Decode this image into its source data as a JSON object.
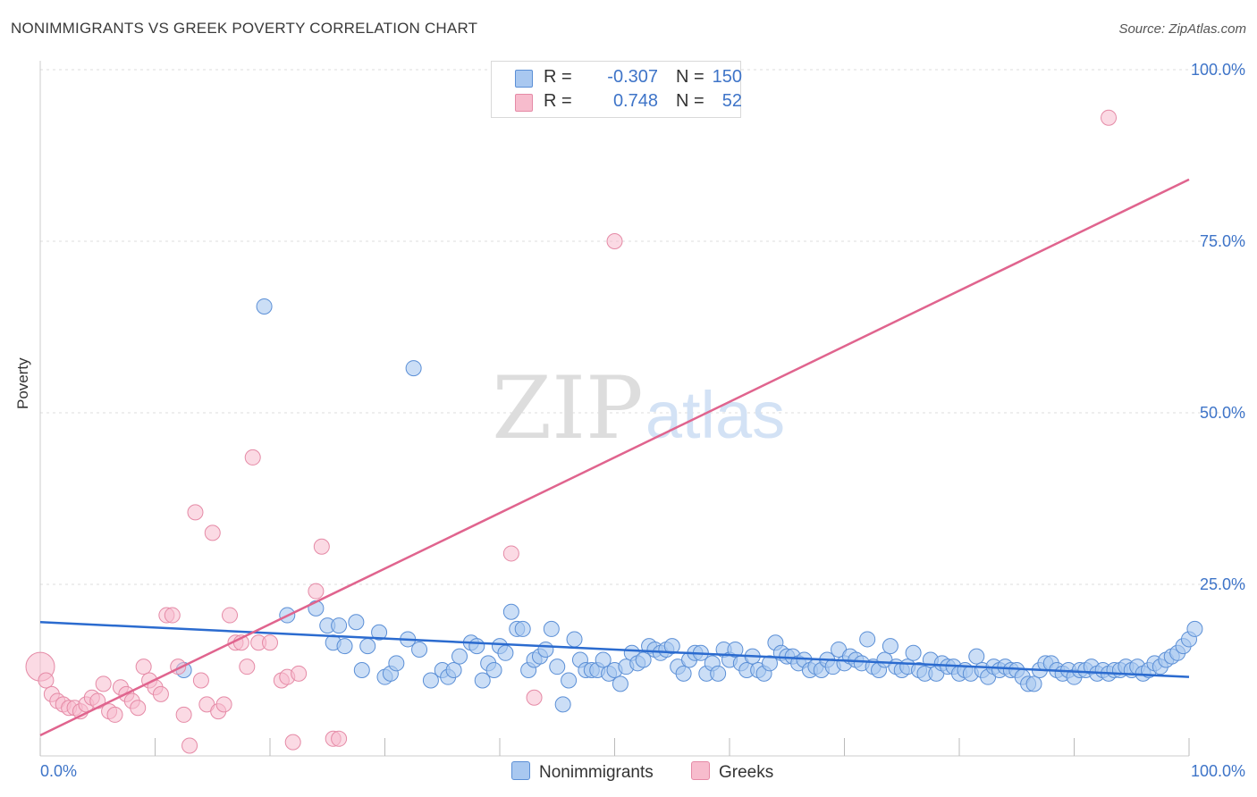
{
  "title": "NONIMMIGRANTS VS GREEK POVERTY CORRELATION CHART",
  "source": "Source: ZipAtlas.com",
  "watermark": {
    "zip": "ZIP",
    "atlas": "atlas"
  },
  "legend": {
    "rows": [
      {
        "r_label": "R =",
        "r_value": "-0.307",
        "n_label": "N =",
        "n_value": "150"
      },
      {
        "r_label": "R =",
        "r_value": "0.748",
        "n_label": "N =",
        "n_value": "52"
      }
    ]
  },
  "colors": {
    "nonimmigrants_fill": "#a9c8f0",
    "nonimmigrants_stroke": "#5b8fd6",
    "nonimmigrants_line": "#2b6bcf",
    "greeks_fill": "#f7bccd",
    "greeks_stroke": "#e58aa6",
    "greeks_line": "#e0648e",
    "tick_label": "#3e74c8",
    "grid": "#dcdcdc"
  },
  "chart_data": {
    "type": "scatter",
    "title": "NONIMMIGRANTS VS GREEK POVERTY CORRELATION CHART",
    "xlabel": "",
    "ylabel": "Poverty",
    "xlim": [
      0,
      100
    ],
    "ylim": [
      0,
      100
    ],
    "x_tick_labels": [
      "0.0%",
      "100.0%"
    ],
    "y_ticks": [
      25,
      50,
      75,
      100
    ],
    "y_tick_labels": [
      "25.0%",
      "50.0%",
      "75.0%",
      "100.0%"
    ],
    "grid": true,
    "legend_position": "bottom",
    "series": [
      {
        "name": "Nonimmigrants",
        "R": -0.307,
        "N": 150,
        "trend": {
          "x": [
            0,
            100
          ],
          "y": [
            19.5,
            11.5
          ]
        },
        "points": [
          [
            12.5,
            12.5
          ],
          [
            19.5,
            65.5
          ],
          [
            21.5,
            20.5
          ],
          [
            24,
            21.5
          ],
          [
            25,
            19
          ],
          [
            25.5,
            16.5
          ],
          [
            26,
            19
          ],
          [
            26.5,
            16
          ],
          [
            27.5,
            19.5
          ],
          [
            28,
            12.5
          ],
          [
            28.5,
            16
          ],
          [
            29.5,
            18
          ],
          [
            30,
            11.5
          ],
          [
            30.5,
            12
          ],
          [
            31,
            13.5
          ],
          [
            32,
            17
          ],
          [
            32.5,
            56.5
          ],
          [
            33,
            15.5
          ],
          [
            34,
            11
          ],
          [
            35,
            12.5
          ],
          [
            35.5,
            11.5
          ],
          [
            36,
            12.5
          ],
          [
            36.5,
            14.5
          ],
          [
            37.5,
            16.5
          ],
          [
            38,
            16
          ],
          [
            38.5,
            11
          ],
          [
            39,
            13.5
          ],
          [
            39.5,
            12.5
          ],
          [
            40,
            16
          ],
          [
            40.5,
            15
          ],
          [
            41,
            21
          ],
          [
            41.5,
            18.5
          ],
          [
            42,
            18.5
          ],
          [
            42.5,
            12.5
          ],
          [
            43,
            14
          ],
          [
            43.5,
            14.5
          ],
          [
            44,
            15.5
          ],
          [
            44.5,
            18.5
          ],
          [
            45,
            13
          ],
          [
            45.5,
            7.5
          ],
          [
            46,
            11
          ],
          [
            46.5,
            17
          ],
          [
            47,
            14
          ],
          [
            47.5,
            12.5
          ],
          [
            48,
            12.5
          ],
          [
            48.5,
            12.5
          ],
          [
            49,
            14
          ],
          [
            49.5,
            12
          ],
          [
            50,
            12.5
          ],
          [
            50.5,
            10.5
          ],
          [
            51,
            13
          ],
          [
            51.5,
            15
          ],
          [
            52,
            13.5
          ],
          [
            52.5,
            14
          ],
          [
            53,
            16
          ],
          [
            53.5,
            15.5
          ],
          [
            54,
            15
          ],
          [
            54.5,
            15.5
          ],
          [
            55,
            16
          ],
          [
            55.5,
            13
          ],
          [
            56,
            12
          ],
          [
            56.5,
            14
          ],
          [
            57,
            15
          ],
          [
            57.5,
            15
          ],
          [
            58,
            12
          ],
          [
            58.5,
            13.5
          ],
          [
            59,
            12
          ],
          [
            59.5,
            15.5
          ],
          [
            60,
            14
          ],
          [
            60.5,
            15.5
          ],
          [
            61,
            13.5
          ],
          [
            61.5,
            12.5
          ],
          [
            62,
            14.5
          ],
          [
            62.5,
            12.5
          ],
          [
            63,
            12
          ],
          [
            63.5,
            13.5
          ],
          [
            64,
            16.5
          ],
          [
            64.5,
            15
          ],
          [
            65,
            14.5
          ],
          [
            65.5,
            14.5
          ],
          [
            66,
            13.5
          ],
          [
            66.5,
            14
          ],
          [
            67,
            12.5
          ],
          [
            67.5,
            13
          ],
          [
            68,
            12.5
          ],
          [
            68.5,
            14
          ],
          [
            69,
            13
          ],
          [
            69.5,
            15.5
          ],
          [
            70,
            13.5
          ],
          [
            70.5,
            14.5
          ],
          [
            71,
            14
          ],
          [
            71.5,
            13.5
          ],
          [
            72,
            17
          ],
          [
            72.5,
            13
          ],
          [
            73,
            12.5
          ],
          [
            73.5,
            14
          ],
          [
            74,
            16
          ],
          [
            74.5,
            13
          ],
          [
            75,
            12.5
          ],
          [
            75.5,
            13
          ],
          [
            76,
            15
          ],
          [
            76.5,
            12.5
          ],
          [
            77,
            12
          ],
          [
            77.5,
            14
          ],
          [
            78,
            12
          ],
          [
            78.5,
            13.5
          ],
          [
            79,
            13
          ],
          [
            79.5,
            13
          ],
          [
            80,
            12
          ],
          [
            80.5,
            12.5
          ],
          [
            81,
            12
          ],
          [
            81.5,
            14.5
          ],
          [
            82,
            12.5
          ],
          [
            82.5,
            11.5
          ],
          [
            83,
            13
          ],
          [
            83.5,
            12.5
          ],
          [
            84,
            13
          ],
          [
            84.5,
            12.5
          ],
          [
            85,
            12.5
          ],
          [
            85.5,
            11.5
          ],
          [
            86,
            10.5
          ],
          [
            86.5,
            10.5
          ],
          [
            87,
            12.5
          ],
          [
            87.5,
            13.5
          ],
          [
            88,
            13.5
          ],
          [
            88.5,
            12.5
          ],
          [
            89,
            12
          ],
          [
            89.5,
            12.5
          ],
          [
            90,
            11.5
          ],
          [
            90.5,
            12.5
          ],
          [
            91,
            12.5
          ],
          [
            91.5,
            13
          ],
          [
            92,
            12
          ],
          [
            92.5,
            12.5
          ],
          [
            93,
            12
          ],
          [
            93.5,
            12.5
          ],
          [
            94,
            12.5
          ],
          [
            94.5,
            13
          ],
          [
            95,
            12.5
          ],
          [
            95.5,
            13
          ],
          [
            96,
            12
          ],
          [
            96.5,
            12.5
          ],
          [
            97,
            13.5
          ],
          [
            97.5,
            13
          ],
          [
            98,
            14
          ],
          [
            98.5,
            14.5
          ],
          [
            99,
            15
          ],
          [
            99.5,
            16
          ],
          [
            100,
            17
          ],
          [
            100.5,
            18.5
          ]
        ]
      },
      {
        "name": "Greeks",
        "R": 0.748,
        "N": 52,
        "trend": {
          "x": [
            0,
            100
          ],
          "y": [
            3,
            84
          ]
        },
        "points": [
          [
            0,
            13
          ],
          [
            0.5,
            11
          ],
          [
            1,
            9
          ],
          [
            1.5,
            8
          ],
          [
            2,
            7.5
          ],
          [
            2.5,
            7
          ],
          [
            3,
            7
          ],
          [
            3.5,
            6.5
          ],
          [
            4,
            7.5
          ],
          [
            4.5,
            8.5
          ],
          [
            5,
            8
          ],
          [
            5.5,
            10.5
          ],
          [
            6,
            6.5
          ],
          [
            6.5,
            6
          ],
          [
            7,
            10
          ],
          [
            7.5,
            9
          ],
          [
            8,
            8
          ],
          [
            8.5,
            7
          ],
          [
            9,
            13
          ],
          [
            9.5,
            11
          ],
          [
            10,
            10
          ],
          [
            10.5,
            9
          ],
          [
            11,
            20.5
          ],
          [
            11.5,
            20.5
          ],
          [
            12,
            13
          ],
          [
            12.5,
            6
          ],
          [
            13,
            1.5
          ],
          [
            13.5,
            35.5
          ],
          [
            14,
            11
          ],
          [
            14.5,
            7.5
          ],
          [
            15,
            32.5
          ],
          [
            15.5,
            6.5
          ],
          [
            16,
            7.5
          ],
          [
            16.5,
            20.5
          ],
          [
            17,
            16.5
          ],
          [
            17.5,
            16.5
          ],
          [
            18,
            13
          ],
          [
            18.5,
            43.5
          ],
          [
            19,
            16.5
          ],
          [
            20,
            16.5
          ],
          [
            21,
            11
          ],
          [
            21.5,
            11.5
          ],
          [
            22,
            2
          ],
          [
            22.5,
            12
          ],
          [
            24,
            24
          ],
          [
            24.5,
            30.5
          ],
          [
            25.5,
            2.5
          ],
          [
            26,
            2.5
          ],
          [
            41,
            29.5
          ],
          [
            43,
            8.5
          ],
          [
            50,
            75
          ],
          [
            93,
            93
          ]
        ]
      }
    ]
  },
  "bottom_legend": [
    "Nonimmigrants",
    "Greeks"
  ]
}
